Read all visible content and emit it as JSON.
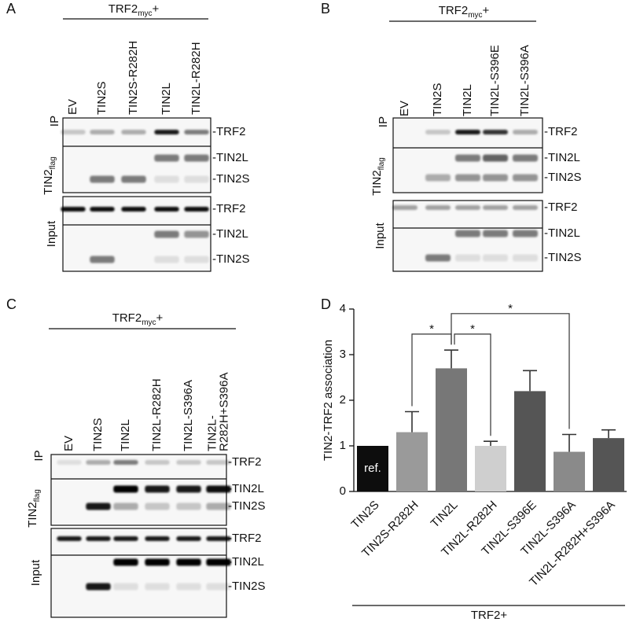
{
  "panels": [
    {
      "letter": "A",
      "header": "TRF2",
      "header_sub": "myc",
      "header_suffix": "+",
      "lanes": [
        [
          "EV"
        ],
        [
          "TIN2S"
        ],
        [
          "TIN2S-R282H"
        ],
        [
          "TIN2L"
        ],
        [
          "TIN2L-R282H"
        ]
      ],
      "ip": "IP",
      "tin2": "TIN2",
      "tin2_sub": "flag",
      "input": "Input",
      "band_labels": [
        "-TRF2",
        "-TIN2L",
        "-TIN2S",
        "-TRF2",
        "-TIN2L",
        "-TIN2S"
      ]
    },
    {
      "letter": "B",
      "header": "TRF2",
      "header_sub": "myc",
      "header_suffix": "+",
      "lanes": [
        [
          "EV"
        ],
        [
          "TIN2S"
        ],
        [
          "TIN2L"
        ],
        [
          "TIN2L-S396E"
        ],
        [
          "TIN2L-S396A"
        ]
      ],
      "ip": "IP",
      "tin2": "TIN2",
      "tin2_sub": "flag",
      "input": "Input",
      "band_labels": [
        "-TRF2",
        "-TIN2L",
        "-TIN2S",
        "-TRF2",
        "-TIN2L",
        "-TIN2S"
      ]
    },
    {
      "letter": "C",
      "header": "TRF2",
      "header_sub": "myc",
      "header_suffix": "+",
      "lanes": [
        [
          "EV"
        ],
        [
          "TIN2S"
        ],
        [
          "TIN2L"
        ],
        [
          "TIN2L-R282H"
        ],
        [
          "TIN2L-S396A"
        ],
        [
          "TIN2L-",
          "R282H+S396A"
        ]
      ],
      "ip": "IP",
      "tin2": "TIN2",
      "tin2_sub": "flag",
      "input": "Input",
      "band_labels": [
        "-TRF2",
        "-TIN2L",
        "-TIN2S",
        "-TRF2",
        "-TIN2L",
        "-TIN2S"
      ]
    }
  ],
  "chart_data": {
    "type": "bar",
    "letter": "D",
    "ylabel": "TIN2-TRF2 association",
    "categories": [
      "TIN2S",
      "TIN2S-R282H",
      "TIN2L",
      "TIN2L-R282H",
      "TIN2L-S396E",
      "TIN2L-S396A",
      "TIN2L-R282H+S396A"
    ],
    "values": [
      1,
      1.3,
      2.7,
      1.0,
      2.2,
      0.87,
      1.17
    ],
    "errors": [
      null,
      0.45,
      0.4,
      0.1,
      0.45,
      0.38,
      0.18
    ],
    "colors": [
      "#0d0d0d",
      "#9a9a9a",
      "#777777",
      "#cfcfcf",
      "#555555",
      "#8a8a8a",
      "#555555"
    ],
    "ref_label": "ref.",
    "ylim": [
      0,
      4
    ],
    "yticks": [
      0,
      1,
      2,
      3,
      4
    ],
    "significance": [
      {
        "from": "TIN2S-R282H",
        "to": "TIN2L",
        "label": "*"
      },
      {
        "from": "TIN2L",
        "to": "TIN2L-R282H",
        "label": "*"
      },
      {
        "from": "TIN2L",
        "to": "TIN2L-S396A",
        "label": "*"
      }
    ],
    "group_label": "TRF2+"
  }
}
